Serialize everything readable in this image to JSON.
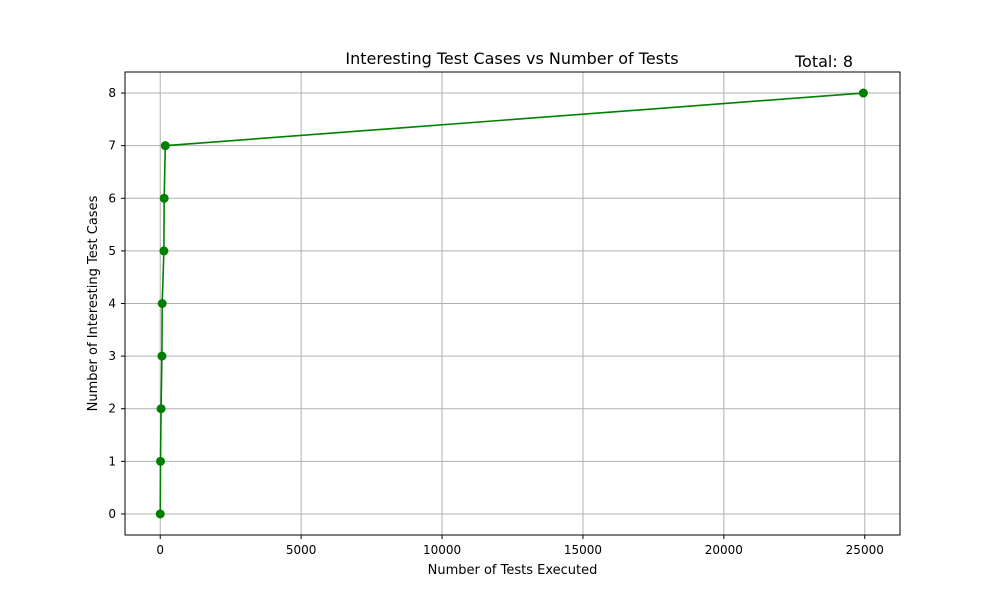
{
  "chart_data": {
    "type": "line",
    "title": "Interesting Test Cases vs Number of Tests",
    "annotation": "Total: 8",
    "xlabel": "Number of Tests Executed",
    "ylabel": "Number of Interesting Test Cases",
    "xlim": [
      -1250,
      26250
    ],
    "ylim": [
      -0.4,
      8.4
    ],
    "xticks": [
      0,
      5000,
      10000,
      15000,
      20000,
      25000
    ],
    "xtick_labels": [
      "0",
      "5000",
      "10000",
      "15000",
      "20000",
      "25000"
    ],
    "yticks": [
      0,
      1,
      2,
      3,
      4,
      5,
      6,
      7,
      8
    ],
    "ytick_labels": [
      "0",
      "1",
      "2",
      "3",
      "4",
      "5",
      "6",
      "7",
      "8"
    ],
    "grid": true,
    "series": [
      {
        "color": "#008000",
        "marker": "circle",
        "x": [
          0,
          10,
          30,
          60,
          70,
          130,
          140,
          180,
          24950
        ],
        "y": [
          0,
          1,
          2,
          3,
          4,
          5,
          6,
          7,
          8
        ]
      }
    ]
  }
}
